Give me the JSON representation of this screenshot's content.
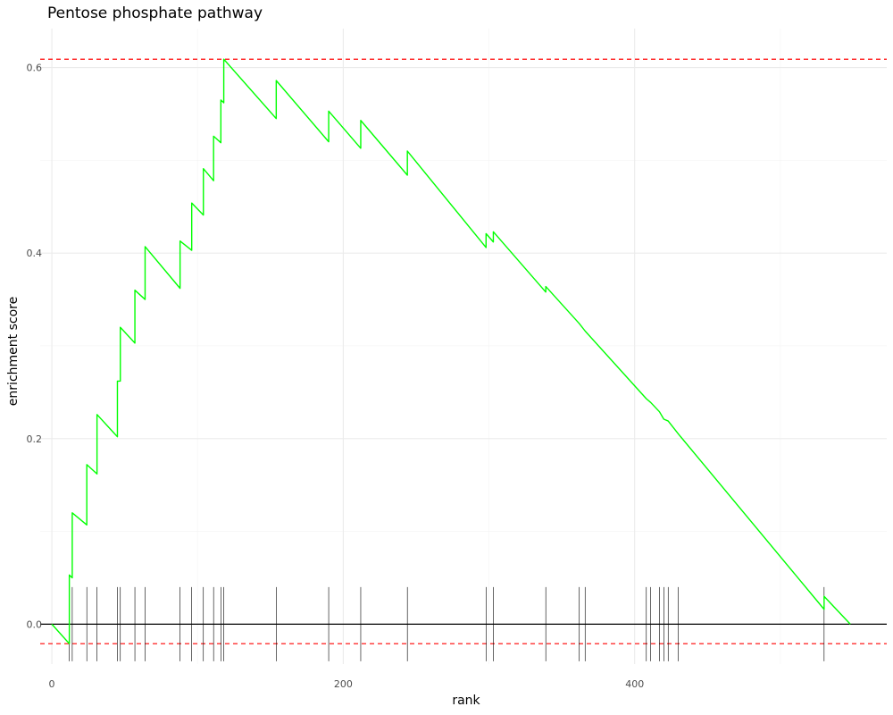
{
  "chart_data": {
    "type": "line",
    "title": "Pentose phosphate pathway",
    "xlabel": "rank",
    "ylabel": "enrichment score",
    "xlim": [
      -8,
      573
    ],
    "ylim": [
      -0.043,
      0.642
    ],
    "x_ticks": [
      0,
      200,
      400
    ],
    "y_ticks": [
      0.0,
      0.2,
      0.4,
      0.6
    ],
    "y_tick_labels": [
      "0.0",
      "0.2",
      "0.4",
      "0.6"
    ],
    "grid": true,
    "reference_lines": {
      "zero": 0.0,
      "max_es": 0.609,
      "min_es": -0.021
    },
    "colors": {
      "running_score": "#00ff00",
      "reference_dashed": "#ff0000",
      "zero_line": "#000000",
      "hit_ticks": "#000000"
    },
    "series": [
      {
        "points": [
          [
            0,
            0.0
          ],
          [
            12,
            -0.021
          ],
          [
            12,
            0.053
          ],
          [
            14,
            0.05
          ],
          [
            14,
            0.12
          ],
          [
            24,
            0.107
          ],
          [
            24,
            0.172
          ],
          [
            31,
            0.162
          ],
          [
            31,
            0.226
          ],
          [
            45,
            0.202
          ],
          [
            45,
            0.262
          ],
          [
            47,
            0.262
          ],
          [
            47,
            0.32
          ],
          [
            57,
            0.303
          ],
          [
            57,
            0.36
          ],
          [
            64,
            0.35
          ],
          [
            64,
            0.407
          ],
          [
            88,
            0.362
          ],
          [
            88,
            0.413
          ],
          [
            96,
            0.403
          ],
          [
            96,
            0.454
          ],
          [
            104,
            0.441
          ],
          [
            104,
            0.491
          ],
          [
            111,
            0.478
          ],
          [
            111,
            0.526
          ],
          [
            116,
            0.519
          ],
          [
            116,
            0.565
          ],
          [
            118,
            0.562
          ],
          [
            118,
            0.609
          ],
          [
            154,
            0.545
          ],
          [
            154,
            0.586
          ],
          [
            190,
            0.52
          ],
          [
            190,
            0.553
          ],
          [
            212,
            0.513
          ],
          [
            212,
            0.543
          ],
          [
            244,
            0.484
          ],
          [
            244,
            0.51
          ],
          [
            298,
            0.406
          ],
          [
            298,
            0.421
          ],
          [
            303,
            0.412
          ],
          [
            303,
            0.423
          ],
          [
            339,
            0.358
          ],
          [
            339,
            0.364
          ],
          [
            362,
            0.324
          ],
          [
            362,
            0.324
          ],
          [
            366,
            0.316
          ],
          [
            366,
            0.316
          ],
          [
            408,
            0.243
          ],
          [
            411,
            0.239
          ],
          [
            417,
            0.229
          ],
          [
            420,
            0.221
          ],
          [
            423,
            0.219
          ],
          [
            430,
            0.205
          ],
          [
            530,
            0.016
          ],
          [
            530,
            0.03
          ],
          [
            548,
            0.0
          ]
        ]
      }
    ],
    "hits": [
      12,
      14,
      24,
      31,
      45,
      47,
      57,
      64,
      88,
      96,
      104,
      111,
      116,
      118,
      154,
      190,
      212,
      244,
      298,
      303,
      339,
      362,
      366,
      408,
      411,
      417,
      420,
      423,
      430,
      530
    ]
  }
}
